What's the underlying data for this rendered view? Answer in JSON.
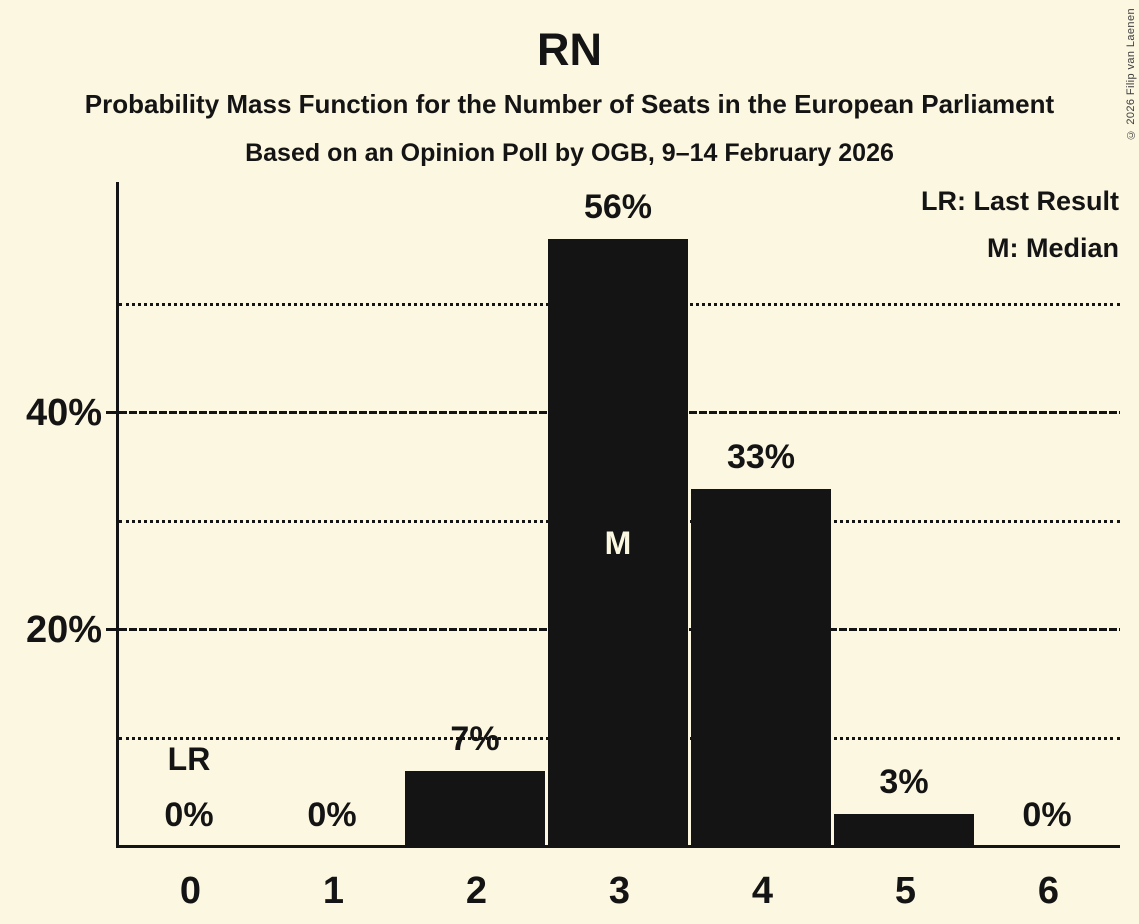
{
  "header": {
    "title": "RN",
    "subtitle": "Probability Mass Function for the Number of Seats in the European Parliament",
    "source_line": "Based on an Opinion Poll by OGB, 9–14 February 2026"
  },
  "copyright": "© 2026 Filip van Laenen",
  "legend": {
    "lr_label": "LR: Last Result",
    "m_label": "M: Median"
  },
  "colors": {
    "background": "#FCF7E1",
    "bar": "#141414",
    "text": "#141414",
    "bar_text": "#FCF7E1",
    "copyright_text": "#3C3C3C"
  },
  "chart_data": {
    "type": "bar",
    "title": "RN",
    "categories": [
      "0",
      "1",
      "2",
      "3",
      "4",
      "5",
      "6"
    ],
    "values": [
      0,
      0,
      7,
      56,
      33,
      3,
      0
    ],
    "value_labels": [
      "0%",
      "0%",
      "7%",
      "56%",
      "33%",
      "3%",
      "0%"
    ],
    "xlabel": "",
    "ylabel": "",
    "ylim": [
      0,
      61.3
    ],
    "yticks_major": [
      {
        "value": 20,
        "label": "20%"
      },
      {
        "value": 40,
        "label": "40%"
      }
    ],
    "yticks_minor": [
      10,
      30,
      50
    ],
    "grid": "horizontal",
    "legend_position": "top-right",
    "annotations": [
      {
        "marker": "LR",
        "meaning": "Last Result",
        "category": "0",
        "placement": "above-value-label"
      },
      {
        "marker": "M",
        "meaning": "Median",
        "category": "3",
        "placement": "inside-bar"
      }
    ]
  }
}
